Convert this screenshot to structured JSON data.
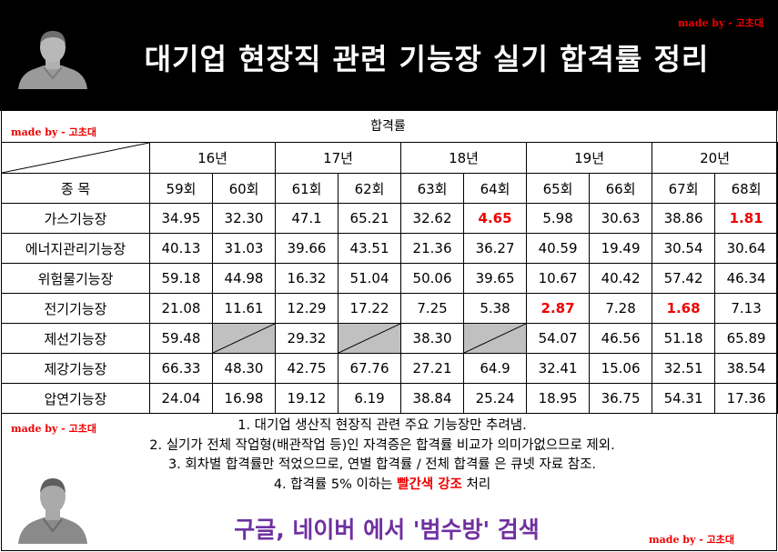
{
  "header": {
    "title": "대기업 현장직 관련 기능장 실기 합격률 정리",
    "made_by": "made by - 고초대"
  },
  "table": {
    "caption": "합격률",
    "made_by": "made by - 고초대",
    "corner_label": "종 목",
    "years": [
      "16년",
      "17년",
      "18년",
      "19년",
      "20년"
    ],
    "rounds": [
      "59회",
      "60회",
      "61회",
      "62회",
      "63회",
      "64회",
      "65회",
      "66회",
      "67회",
      "68회"
    ],
    "rows": [
      {
        "name": "가스기능장",
        "values": [
          "34.95",
          "32.30",
          "47.1",
          "65.21",
          "32.62",
          "4.65",
          "5.98",
          "30.63",
          "38.86",
          "1.81"
        ],
        "highlight": [
          5,
          9
        ]
      },
      {
        "name": "에너지관리기능장",
        "values": [
          "40.13",
          "31.03",
          "39.66",
          "43.51",
          "21.36",
          "36.27",
          "40.59",
          "19.49",
          "30.54",
          "30.64"
        ],
        "highlight": []
      },
      {
        "name": "위험물기능장",
        "values": [
          "59.18",
          "44.98",
          "16.32",
          "51.04",
          "50.06",
          "39.65",
          "10.67",
          "40.42",
          "57.42",
          "46.34"
        ],
        "highlight": []
      },
      {
        "name": "전기기능장",
        "values": [
          "21.08",
          "11.61",
          "12.29",
          "17.22",
          "7.25",
          "5.38",
          "2.87",
          "7.28",
          "1.68",
          "7.13"
        ],
        "highlight": [
          6,
          8
        ]
      },
      {
        "name": "제선기능장",
        "values": [
          "59.48",
          null,
          "29.32",
          null,
          "38.30",
          null,
          "54.07",
          "46.56",
          "51.18",
          "65.89"
        ],
        "highlight": []
      },
      {
        "name": "제강기능장",
        "values": [
          "66.33",
          "48.30",
          "42.75",
          "67.76",
          "27.21",
          "64.9",
          "32.41",
          "15.06",
          "32.51",
          "38.54"
        ],
        "highlight": []
      },
      {
        "name": "압연기능장",
        "values": [
          "24.04",
          "16.98",
          "19.12",
          "6.19",
          "38.84",
          "25.24",
          "18.95",
          "36.75",
          "54.31",
          "17.36"
        ],
        "highlight": []
      }
    ],
    "highlight_color": "#e00000",
    "empty_cell_color": "#c0c0c0"
  },
  "notes": {
    "made_by": "made by - 고초대",
    "line1": "1. 대기업 생산직 현장직 관련 주요 기능장만 추려냄.",
    "line2": "2. 실기가 전체 작업형(배관작업 등)인 자격증은 합격률 비교가 의미가없으므로 제외.",
    "line3": "3. 회차별 합격률만 적었으므로, 연별 합격률 / 전체 합격률 은 큐넷 자료 참조.",
    "line4_pre": "4. 합격률 5% 이하는 ",
    "line4_hl": "빨간색 강조",
    "line4_post": " 처리"
  },
  "footer": {
    "cta": "구글, 네이버 에서 '범수방' 검색",
    "made_by": "made by - 고초대",
    "cta_color": "#7030a0"
  }
}
